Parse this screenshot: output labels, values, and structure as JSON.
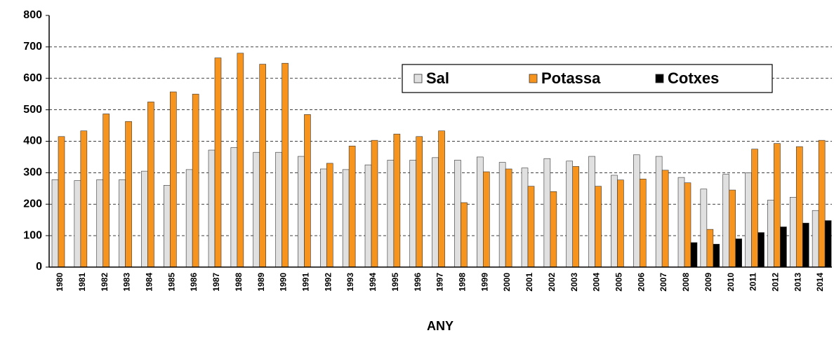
{
  "chart_data": {
    "type": "bar",
    "xlabel": "ANY",
    "categories": [
      "1980",
      "1981",
      "1982",
      "1983",
      "1984",
      "1985",
      "1986",
      "1987",
      "1988",
      "1989",
      "1990",
      "1991",
      "1992",
      "1993",
      "1994",
      "1995",
      "1996",
      "1997",
      "1998",
      "1999",
      "2000",
      "2001",
      "2002",
      "2003",
      "2004",
      "2005",
      "2006",
      "2007",
      "2008",
      "2009",
      "2010",
      "2011",
      "2012",
      "2013",
      "2014"
    ],
    "series": [
      {
        "name": "Sal",
        "color": "#e0e0e0",
        "values": [
          278,
          275,
          278,
          278,
          305,
          260,
          310,
          372,
          380,
          365,
          365,
          352,
          312,
          310,
          325,
          340,
          340,
          348,
          340,
          350,
          333,
          315,
          345,
          337,
          352,
          292,
          357,
          352,
          285,
          248,
          295,
          300,
          213,
          222,
          180
        ]
      },
      {
        "name": "Potassa",
        "color": "#f7941d",
        "values": [
          415,
          433,
          487,
          463,
          525,
          557,
          550,
          665,
          680,
          645,
          648,
          485,
          330,
          385,
          403,
          423,
          415,
          433,
          205,
          303,
          312,
          257,
          240,
          320,
          257,
          277,
          280,
          308,
          268,
          120,
          245,
          375,
          393,
          383,
          403
        ]
      },
      {
        "name": "Cotxes",
        "color": "#000000",
        "values": [
          null,
          null,
          null,
          null,
          null,
          null,
          null,
          null,
          null,
          null,
          null,
          null,
          null,
          null,
          null,
          null,
          null,
          null,
          null,
          null,
          null,
          null,
          null,
          null,
          null,
          null,
          null,
          null,
          78,
          73,
          90,
          110,
          128,
          140,
          148
        ]
      }
    ],
    "ylim": [
      0,
      800
    ],
    "yticks": [
      0,
      100,
      200,
      300,
      400,
      500,
      600,
      700,
      800
    ],
    "grid": true
  }
}
